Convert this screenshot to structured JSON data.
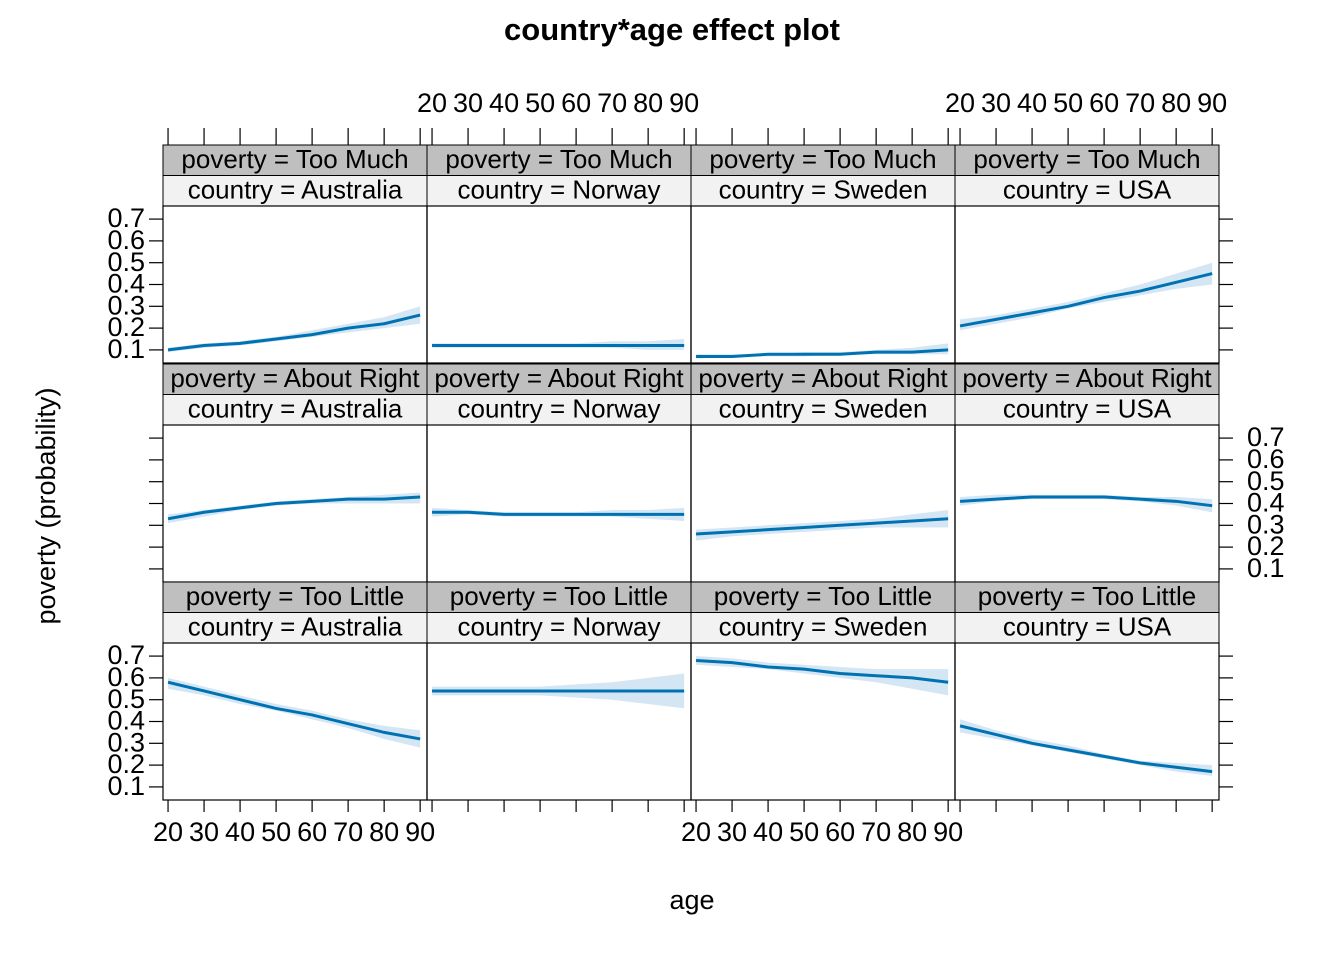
{
  "chart_data": {
    "type": "line",
    "title": "country*age effect plot",
    "xlabel": "age",
    "ylabel": "poverty (probability)",
    "x": [
      20,
      30,
      40,
      50,
      60,
      70,
      80,
      90
    ],
    "xlim": [
      18.6,
      91.9
    ],
    "xticks": [
      20,
      30,
      40,
      50,
      60,
      70,
      80,
      90
    ],
    "ylim": [
      0.04,
      0.76
    ],
    "yticks": [
      0.1,
      0.2,
      0.3,
      0.4,
      0.5,
      0.6,
      0.7
    ],
    "color": "#0072b2",
    "band_color": "#d4e6f4",
    "strip_colors": [
      "#bfbfbf",
      "#f2f2f2"
    ],
    "panels": [
      {
        "strips": [
          "poverty = Too Much",
          "country = Australia"
        ],
        "values": [
          0.1,
          0.12,
          0.13,
          0.15,
          0.17,
          0.2,
          0.22,
          0.26
        ],
        "lower": [
          0.09,
          0.11,
          0.12,
          0.14,
          0.16,
          0.18,
          0.2,
          0.22
        ],
        "upper": [
          0.11,
          0.13,
          0.14,
          0.16,
          0.19,
          0.22,
          0.25,
          0.3
        ]
      },
      {
        "strips": [
          "poverty = Too Much",
          "country = Norway"
        ],
        "values": [
          0.12,
          0.12,
          0.12,
          0.12,
          0.12,
          0.12,
          0.12,
          0.12
        ],
        "lower": [
          0.11,
          0.11,
          0.11,
          0.11,
          0.11,
          0.11,
          0.1,
          0.1
        ],
        "upper": [
          0.13,
          0.13,
          0.13,
          0.13,
          0.13,
          0.14,
          0.14,
          0.15
        ]
      },
      {
        "strips": [
          "poverty = Too Much",
          "country = Sweden"
        ],
        "values": [
          0.07,
          0.07,
          0.08,
          0.08,
          0.08,
          0.09,
          0.09,
          0.1
        ],
        "lower": [
          0.06,
          0.07,
          0.07,
          0.07,
          0.08,
          0.08,
          0.08,
          0.08
        ],
        "upper": [
          0.08,
          0.08,
          0.08,
          0.09,
          0.09,
          0.1,
          0.11,
          0.13
        ]
      },
      {
        "strips": [
          "poverty = Too Much",
          "country = USA"
        ],
        "values": [
          0.21,
          0.24,
          0.27,
          0.3,
          0.34,
          0.37,
          0.41,
          0.45
        ],
        "lower": [
          0.19,
          0.22,
          0.25,
          0.29,
          0.32,
          0.35,
          0.38,
          0.4
        ],
        "upper": [
          0.24,
          0.26,
          0.29,
          0.32,
          0.36,
          0.4,
          0.45,
          0.5
        ]
      },
      {
        "strips": [
          "poverty = About Right",
          "country = Australia"
        ],
        "values": [
          0.33,
          0.36,
          0.38,
          0.4,
          0.41,
          0.42,
          0.42,
          0.43
        ],
        "lower": [
          0.31,
          0.34,
          0.37,
          0.39,
          0.4,
          0.4,
          0.4,
          0.4
        ],
        "upper": [
          0.35,
          0.37,
          0.39,
          0.41,
          0.42,
          0.43,
          0.44,
          0.45
        ]
      },
      {
        "strips": [
          "poverty = About Right",
          "country = Norway"
        ],
        "values": [
          0.36,
          0.36,
          0.35,
          0.35,
          0.35,
          0.35,
          0.35,
          0.35
        ],
        "lower": [
          0.34,
          0.35,
          0.34,
          0.34,
          0.34,
          0.34,
          0.33,
          0.32
        ],
        "upper": [
          0.38,
          0.37,
          0.36,
          0.36,
          0.36,
          0.37,
          0.37,
          0.38
        ]
      },
      {
        "strips": [
          "poverty = About Right",
          "country = Sweden"
        ],
        "values": [
          0.26,
          0.27,
          0.28,
          0.29,
          0.3,
          0.31,
          0.32,
          0.33
        ],
        "lower": [
          0.23,
          0.25,
          0.26,
          0.27,
          0.28,
          0.29,
          0.29,
          0.29
        ],
        "upper": [
          0.28,
          0.29,
          0.3,
          0.31,
          0.32,
          0.33,
          0.35,
          0.37
        ]
      },
      {
        "strips": [
          "poverty = About Right",
          "country = USA"
        ],
        "values": [
          0.41,
          0.42,
          0.43,
          0.43,
          0.43,
          0.42,
          0.41,
          0.39
        ],
        "lower": [
          0.39,
          0.41,
          0.42,
          0.42,
          0.42,
          0.41,
          0.39,
          0.36
        ],
        "upper": [
          0.43,
          0.44,
          0.44,
          0.44,
          0.44,
          0.43,
          0.43,
          0.42
        ]
      },
      {
        "strips": [
          "poverty = Too Little",
          "country = Australia"
        ],
        "values": [
          0.58,
          0.54,
          0.5,
          0.46,
          0.43,
          0.39,
          0.35,
          0.32
        ],
        "lower": [
          0.55,
          0.52,
          0.48,
          0.45,
          0.41,
          0.37,
          0.32,
          0.28
        ],
        "upper": [
          0.6,
          0.56,
          0.52,
          0.48,
          0.45,
          0.41,
          0.38,
          0.36
        ]
      },
      {
        "strips": [
          "poverty = Too Little",
          "country = Norway"
        ],
        "values": [
          0.54,
          0.54,
          0.54,
          0.54,
          0.54,
          0.54,
          0.54,
          0.54
        ],
        "lower": [
          0.52,
          0.52,
          0.52,
          0.52,
          0.51,
          0.5,
          0.48,
          0.46
        ],
        "upper": [
          0.56,
          0.56,
          0.56,
          0.56,
          0.57,
          0.58,
          0.6,
          0.62
        ]
      },
      {
        "strips": [
          "poverty = Too Little",
          "country = Sweden"
        ],
        "values": [
          0.68,
          0.67,
          0.65,
          0.64,
          0.62,
          0.61,
          0.6,
          0.58
        ],
        "lower": [
          0.66,
          0.65,
          0.64,
          0.62,
          0.6,
          0.58,
          0.55,
          0.52
        ],
        "upper": [
          0.7,
          0.69,
          0.67,
          0.66,
          0.65,
          0.64,
          0.64,
          0.64
        ]
      },
      {
        "strips": [
          "poverty = Too Little",
          "country = USA"
        ],
        "values": [
          0.38,
          0.34,
          0.3,
          0.27,
          0.24,
          0.21,
          0.19,
          0.17
        ],
        "lower": [
          0.35,
          0.32,
          0.29,
          0.26,
          0.23,
          0.2,
          0.17,
          0.15
        ],
        "upper": [
          0.41,
          0.36,
          0.32,
          0.29,
          0.25,
          0.22,
          0.21,
          0.2
        ]
      }
    ]
  }
}
